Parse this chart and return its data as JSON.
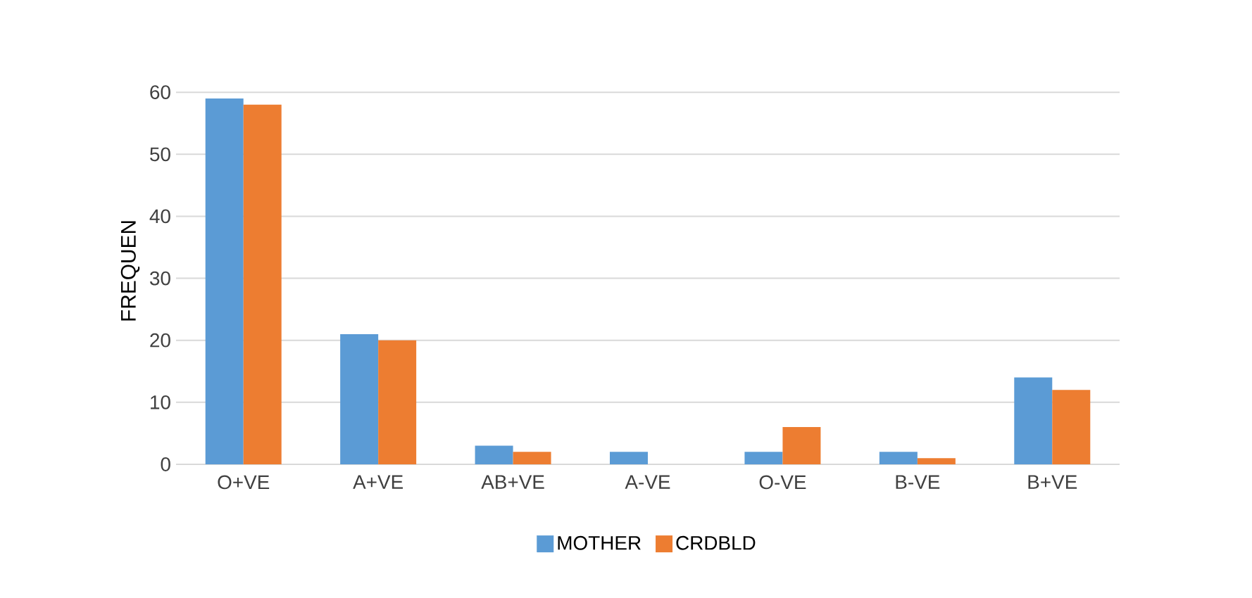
{
  "chart_data": {
    "type": "bar",
    "ylabel": "FREQUEN",
    "categories": [
      "O+VE",
      "A+VE",
      "AB+VE",
      "A-VE",
      "O-VE",
      "B-VE",
      "B+VE"
    ],
    "series": [
      {
        "name": "MOTHER",
        "color": "#5b9bd5",
        "values": [
          59,
          21,
          3,
          2,
          2,
          2,
          14
        ]
      },
      {
        "name": "CRDBLD",
        "color": "#ed7d31",
        "values": [
          58,
          20,
          2,
          0,
          6,
          1,
          12
        ]
      }
    ],
    "ylim": [
      0,
      60
    ],
    "yticks": [
      0,
      10,
      20,
      30,
      40,
      50,
      60
    ],
    "grid": "y",
    "legend": "bottom"
  }
}
